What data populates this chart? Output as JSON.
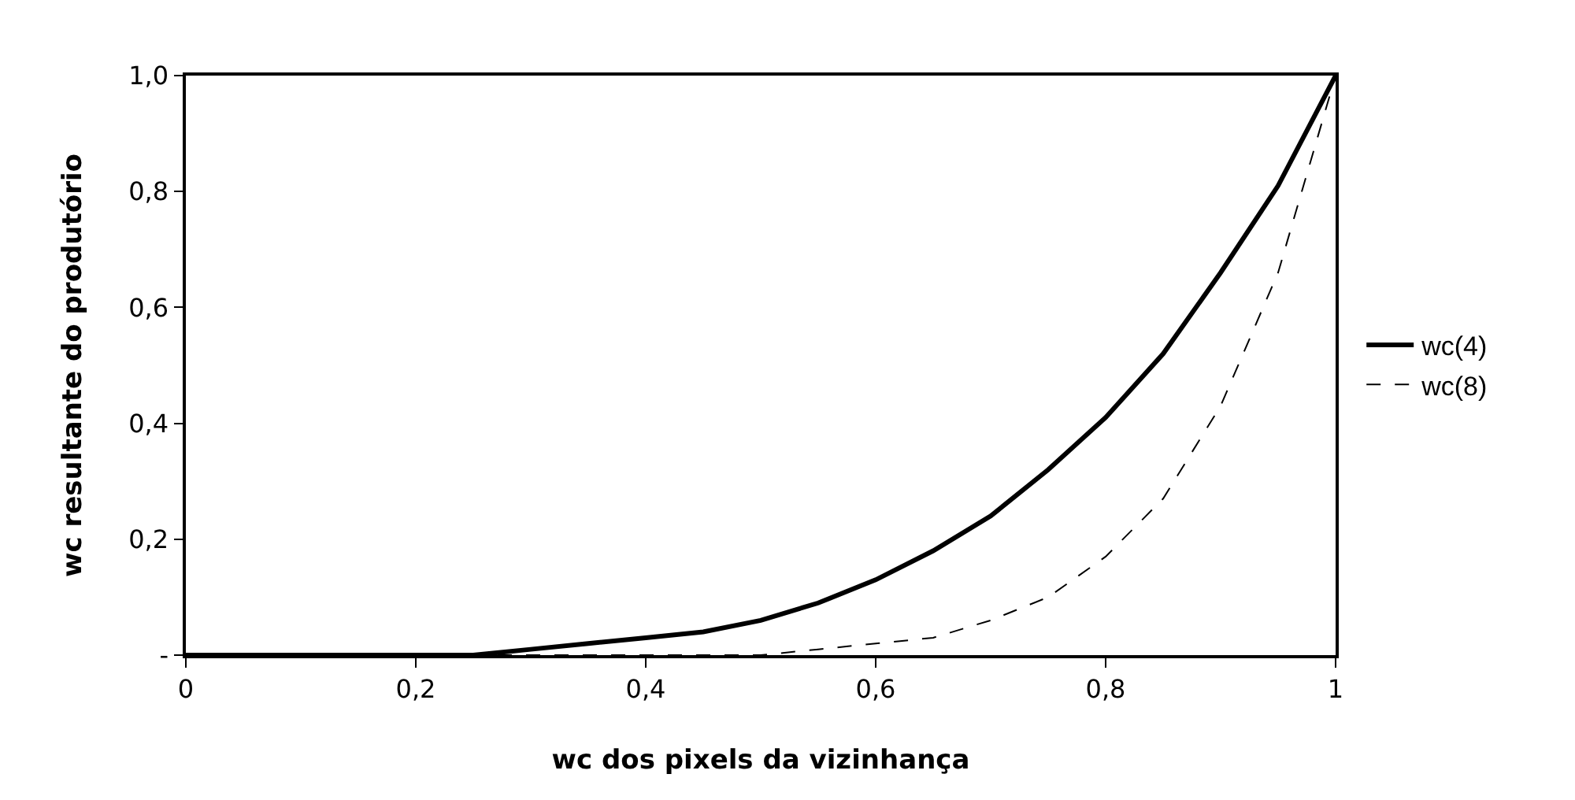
{
  "chart_data": {
    "type": "line",
    "xlabel": "wc dos pixels da vizinhança",
    "ylabel": "wc resultante do produtório",
    "x": [
      0,
      0.05,
      0.1,
      0.15,
      0.2,
      0.25,
      0.3,
      0.35,
      0.4,
      0.45,
      0.5,
      0.55,
      0.6,
      0.65,
      0.7,
      0.75,
      0.8,
      0.85,
      0.9,
      0.95,
      1
    ],
    "series": [
      {
        "name": "wc(4)",
        "color": "#000000",
        "line_style": "solid",
        "values": [
          0,
          0,
          0,
          0,
          0,
          0,
          0.01,
          0.02,
          0.03,
          0.04,
          0.06,
          0.09,
          0.13,
          0.18,
          0.24,
          0.32,
          0.41,
          0.52,
          0.66,
          0.81,
          1
        ]
      },
      {
        "name": "wc(8)",
        "color": "#000000",
        "line_style": "dashed",
        "values": [
          0,
          0,
          0,
          0,
          0,
          0,
          0,
          0,
          0,
          0,
          0,
          0.01,
          0.02,
          0.03,
          0.06,
          0.1,
          0.17,
          0.27,
          0.43,
          0.66,
          1
        ]
      }
    ],
    "xlim": [
      0,
      1
    ],
    "ylim": [
      0,
      1
    ],
    "xticks": [
      0,
      {
        "value": 0.2,
        "label": "0,2"
      },
      {
        "value": 0.4,
        "label": "0,4"
      },
      {
        "value": 0.6,
        "label": "0,6"
      },
      {
        "value": 0.8,
        "label": "0,8"
      },
      1
    ],
    "yticks": [
      {
        "value": 0,
        "label": "-"
      },
      {
        "value": 0.2,
        "label": "0,2"
      },
      {
        "value": 0.4,
        "label": "0,4"
      },
      {
        "value": 0.6,
        "label": "0,6"
      },
      {
        "value": 0.8,
        "label": "0,8"
      },
      {
        "value": 1,
        "label": "1,0"
      }
    ],
    "legend": "right",
    "marker": "none"
  }
}
